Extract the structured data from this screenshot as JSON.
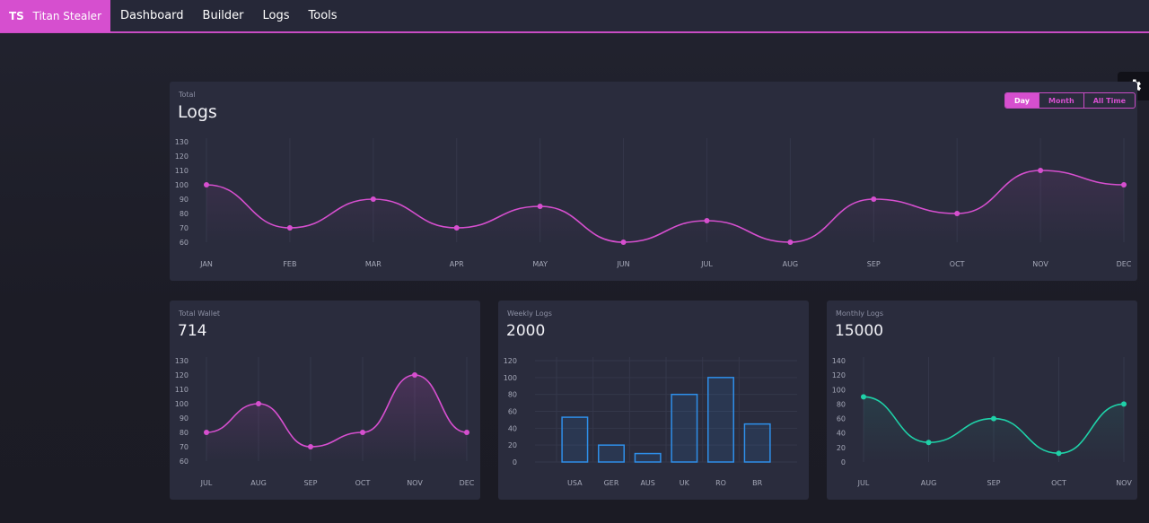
{
  "nav": {
    "brand_short": "TS",
    "brand_name": "Titan Stealer",
    "items": [
      "Dashboard",
      "Builder",
      "Logs",
      "Tools"
    ]
  },
  "settings_icon": "gear-icon",
  "colors": {
    "accent": "#d64fcf",
    "teal": "#1fd1a8",
    "blue": "#2e8fea"
  },
  "main_card": {
    "subtitle": "Total",
    "title": "Logs",
    "range_options": [
      "Day",
      "Month",
      "All Time"
    ],
    "active_range": "Day"
  },
  "wallet_card": {
    "subtitle": "Total Wallet",
    "value": "714"
  },
  "weekly_card": {
    "subtitle": "Weekly Logs",
    "value": "2000"
  },
  "monthly_card": {
    "subtitle": "Monthly Logs",
    "value": "15000"
  },
  "chart_data": [
    {
      "type": "line",
      "categories": [
        "JAN",
        "FEB",
        "MAR",
        "APR",
        "MAY",
        "JUN",
        "JUL",
        "AUG",
        "SEP",
        "OCT",
        "NOV",
        "DEC"
      ],
      "values": [
        100,
        70,
        90,
        70,
        85,
        60,
        75,
        60,
        90,
        80,
        110,
        100
      ],
      "ylim": [
        60,
        130
      ],
      "yticks": [
        60,
        70,
        80,
        90,
        100,
        110,
        120,
        130
      ],
      "color": "#d64fcf",
      "grid": "vertical"
    },
    {
      "type": "area",
      "categories": [
        "JUL",
        "AUG",
        "SEP",
        "OCT",
        "NOV",
        "DEC"
      ],
      "values": [
        80,
        100,
        70,
        80,
        120,
        80
      ],
      "ylim": [
        60,
        130
      ],
      "yticks": [
        60,
        70,
        80,
        90,
        100,
        110,
        120,
        130
      ],
      "color": "#d64fcf",
      "grid": "vertical"
    },
    {
      "type": "bar",
      "categories": [
        "USA",
        "GER",
        "AUS",
        "UK",
        "RO",
        "BR"
      ],
      "values": [
        53,
        20,
        10,
        80,
        100,
        45
      ],
      "ylim": [
        0,
        120
      ],
      "yticks": [
        0,
        20,
        40,
        60,
        80,
        100,
        120
      ],
      "color": "#2e8fea",
      "grid": "both"
    },
    {
      "type": "line",
      "categories": [
        "JUL",
        "AUG",
        "SEP",
        "OCT",
        "NOV"
      ],
      "values": [
        90,
        27,
        60,
        12,
        80
      ],
      "ylim": [
        0,
        140
      ],
      "yticks": [
        0,
        20,
        40,
        60,
        80,
        100,
        120,
        140
      ],
      "color": "#1fd1a8",
      "grid": "vertical"
    }
  ]
}
